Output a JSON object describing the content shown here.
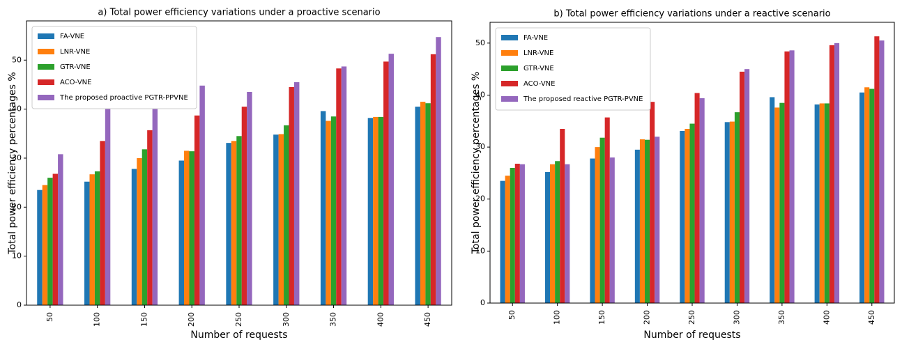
{
  "chart_data": [
    {
      "type": "bar",
      "title": "a) Total power efficiency variations under a proactive scenario",
      "xlabel": "Number of requests",
      "ylabel": "Total power efficiency percentages %",
      "categories": [
        "50",
        "100",
        "150",
        "200",
        "250",
        "300",
        "350",
        "400",
        "450"
      ],
      "series": [
        {
          "name": "FA-VNE",
          "color": "#1f77b4",
          "values": [
            23.5,
            25.2,
            27.8,
            29.5,
            33.1,
            34.8,
            39.6,
            38.2,
            40.5
          ]
        },
        {
          "name": "LNR-VNE",
          "color": "#ff7f0e",
          "values": [
            24.5,
            26.7,
            30,
            31.5,
            33.5,
            34.9,
            37.6,
            38.4,
            41.5
          ]
        },
        {
          "name": "GTR-VNE",
          "color": "#2ca02c",
          "values": [
            26,
            27.3,
            31.8,
            31.4,
            34.5,
            36.7,
            38.5,
            38.4,
            41.2
          ]
        },
        {
          "name": "ACO-VNE",
          "color": "#d62728",
          "values": [
            26.8,
            33.5,
            35.7,
            38.7,
            40.5,
            44.5,
            48.3,
            49.7,
            51.2
          ]
        },
        {
          "name": "The proposed proactive PGTR-PPVNE",
          "color": "#9467bd",
          "values": [
            30.8,
            47,
            41,
            44.8,
            43.5,
            45.5,
            48.7,
            51.3,
            54.7
          ]
        }
      ],
      "ylim": [
        0,
        58
      ],
      "yticks": [
        0,
        10,
        20,
        30,
        40,
        50
      ],
      "legend": "upper left"
    },
    {
      "type": "bar",
      "title": "b) Total power efficiency variations under a reactive scenario",
      "xlabel": "Number of requests",
      "ylabel": "Total power efficiency percentages %",
      "categories": [
        "50",
        "100",
        "150",
        "200",
        "250",
        "300",
        "350",
        "400",
        "450"
      ],
      "series": [
        {
          "name": "FA-VNE",
          "color": "#1f77b4",
          "values": [
            23.5,
            25.2,
            27.8,
            29.5,
            33.1,
            34.8,
            39.6,
            38.2,
            40.5
          ]
        },
        {
          "name": "LNR-VNE",
          "color": "#ff7f0e",
          "values": [
            24.5,
            26.7,
            30,
            31.5,
            33.5,
            34.9,
            37.6,
            38.4,
            41.5
          ]
        },
        {
          "name": "GTR-VNE",
          "color": "#2ca02c",
          "values": [
            26,
            27.3,
            31.8,
            31.4,
            34.5,
            36.7,
            38.5,
            38.4,
            41.2
          ]
        },
        {
          "name": "ACO-VNE",
          "color": "#d62728",
          "values": [
            26.8,
            33.5,
            35.7,
            38.7,
            40.4,
            44.5,
            48.4,
            49.6,
            51.3
          ]
        },
        {
          "name": "The proposed reactive PGTR-PVNE",
          "color": "#9467bd",
          "values": [
            26.7,
            26.7,
            28,
            32,
            39.4,
            45,
            48.6,
            50,
            50.5
          ]
        }
      ],
      "ylim": [
        0,
        54
      ],
      "yticks": [
        0,
        10,
        20,
        30,
        40,
        50
      ],
      "legend": "upper left"
    }
  ]
}
